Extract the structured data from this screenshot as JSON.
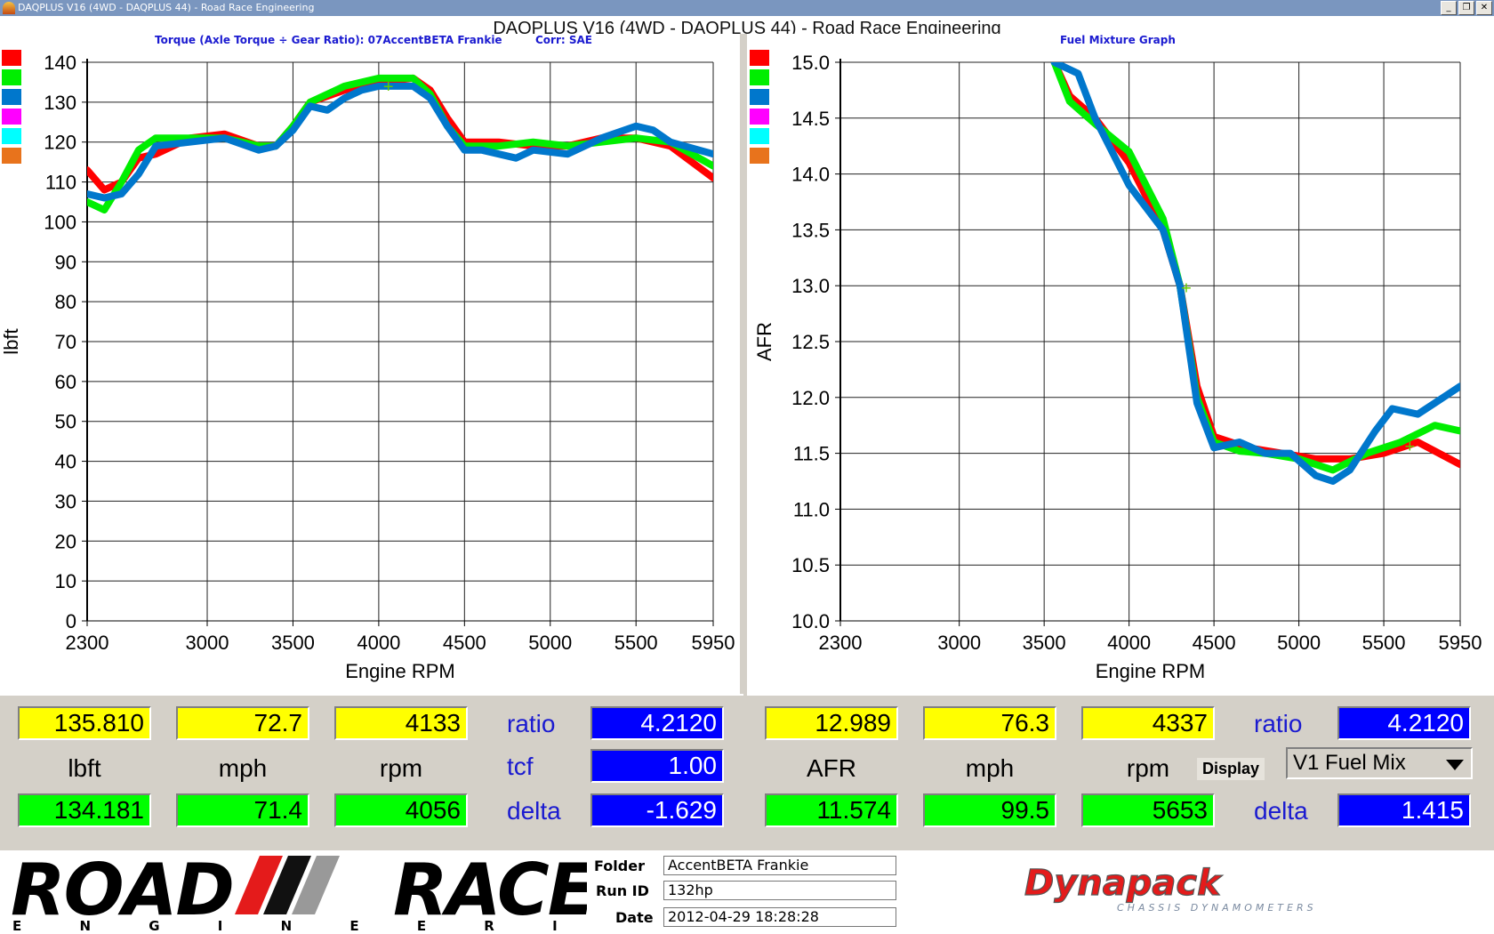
{
  "window": {
    "title": "DAQPLUS V16 (4WD - DAQPLUS 44) - Road Race Engineering",
    "heading": "DAQPLUS V16 (4WD - DAQPLUS 44) - Road Race Engineering",
    "minimize": "_",
    "restore": "❐",
    "close": "✕"
  },
  "colors": {
    "red": "#ff0000",
    "green": "#00ee00",
    "blue": "#0077cc",
    "magenta": "#ff00ff",
    "cyan": "#00ffff",
    "orange": "#e8731c",
    "readout_yellow": "#ffff00",
    "readout_green": "#00ff00",
    "readout_blue": "#0000ff"
  },
  "left_chart": {
    "subtitle": "Torque (Axle Torque ÷ Gear Ratio): 07AccentBETA Frankie",
    "corr": "Corr: SAE",
    "cursor_marker": "+"
  },
  "right_chart": {
    "subtitle": "Fuel Mixture Graph",
    "cursor_marker": "+"
  },
  "chart_data": [
    {
      "type": "line",
      "title": "Torque (Axle Torque ÷ Gear Ratio): 07AccentBETA Frankie",
      "xlabel": "Engine RPM",
      "ylabel": "lbft",
      "xlim": [
        2300,
        5950
      ],
      "ylim": [
        0,
        140
      ],
      "xticks": [
        "2300",
        "3000",
        "3500",
        "4000",
        "4500",
        "5000",
        "5500",
        "5950"
      ],
      "xtick_values": [
        2300,
        3000,
        3500,
        4000,
        4500,
        5000,
        5500,
        5950
      ],
      "yticks": [
        "0",
        "10",
        "20",
        "30",
        "40",
        "50",
        "60",
        "70",
        "80",
        "90",
        "100",
        "110",
        "120",
        "130",
        "140"
      ],
      "ytick_values": [
        0,
        10,
        20,
        30,
        40,
        50,
        60,
        70,
        80,
        90,
        100,
        110,
        120,
        130,
        140
      ],
      "grid": true,
      "series": [
        {
          "color": "#ff0000",
          "x": [
            2300,
            2400,
            2500,
            2600,
            2700,
            2900,
            3100,
            3300,
            3400,
            3500,
            3600,
            3800,
            4000,
            4200,
            4300,
            4400,
            4500,
            4700,
            4900,
            5100,
            5300,
            5500,
            5700,
            5950
          ],
          "y": [
            113,
            108,
            110,
            116,
            117,
            121,
            122,
            119,
            119,
            124,
            130,
            133,
            135,
            136,
            133,
            126,
            120,
            120,
            119,
            119,
            121,
            121,
            119,
            111
          ]
        },
        {
          "color": "#00ee00",
          "x": [
            2300,
            2400,
            2500,
            2600,
            2700,
            2900,
            3100,
            3300,
            3400,
            3500,
            3600,
            3800,
            4000,
            4200,
            4300,
            4400,
            4500,
            4700,
            4900,
            5100,
            5300,
            5500,
            5700,
            5950
          ],
          "y": [
            105,
            103,
            110,
            118,
            121,
            121,
            121,
            119,
            119,
            124,
            130,
            134,
            136,
            136,
            132,
            124,
            119,
            119,
            120,
            119,
            120,
            121,
            120,
            114
          ]
        },
        {
          "color": "#0077cc",
          "x": [
            2300,
            2400,
            2500,
            2600,
            2700,
            2900,
            3100,
            3300,
            3400,
            3500,
            3600,
            3700,
            3800,
            3900,
            4000,
            4200,
            4300,
            4400,
            4500,
            4600,
            4800,
            4900,
            5100,
            5300,
            5500,
            5600,
            5700,
            5950
          ],
          "y": [
            107,
            106,
            107,
            112,
            119,
            120,
            121,
            118,
            119,
            123,
            129,
            128,
            131,
            133,
            134,
            134,
            131,
            124,
            118,
            118,
            116,
            118,
            117,
            121,
            124,
            123,
            120,
            117
          ]
        }
      ]
    },
    {
      "type": "line",
      "title": "Fuel Mixture Graph",
      "xlabel": "Engine RPM",
      "ylabel": "AFR",
      "xlim": [
        2300,
        5950
      ],
      "ylim": [
        10.0,
        15.0
      ],
      "xticks": [
        "2300",
        "3000",
        "3500",
        "4000",
        "4500",
        "5000",
        "5500",
        "5950"
      ],
      "xtick_values": [
        2300,
        3000,
        3500,
        4000,
        4500,
        5000,
        5500,
        5950
      ],
      "yticks": [
        "10.0",
        "10.5",
        "11.0",
        "11.5",
        "12.0",
        "12.5",
        "13.0",
        "13.5",
        "14.0",
        "14.5",
        "15.0"
      ],
      "ytick_values": [
        10.0,
        10.5,
        11.0,
        11.5,
        12.0,
        12.5,
        13.0,
        13.5,
        14.0,
        14.5,
        15.0
      ],
      "grid": true,
      "series": [
        {
          "color": "#ff0000",
          "x": [
            3560,
            3650,
            3800,
            4000,
            4200,
            4300,
            4400,
            4500,
            4700,
            4900,
            5100,
            5300,
            5500,
            5700,
            5950
          ],
          "y": [
            15.0,
            14.7,
            14.5,
            14.1,
            13.5,
            13.0,
            12.1,
            11.65,
            11.55,
            11.5,
            11.45,
            11.45,
            11.5,
            11.6,
            11.4
          ]
        },
        {
          "color": "#00ee00",
          "x": [
            3560,
            3650,
            3800,
            4000,
            4200,
            4300,
            4400,
            4500,
            4650,
            4800,
            5000,
            5200,
            5400,
            5600,
            5800,
            5950
          ],
          "y": [
            15.0,
            14.65,
            14.45,
            14.2,
            13.6,
            13.0,
            12.0,
            11.6,
            11.52,
            11.5,
            11.45,
            11.35,
            11.5,
            11.6,
            11.75,
            11.7
          ]
        },
        {
          "color": "#0077cc",
          "x": [
            3560,
            3700,
            3800,
            3900,
            4000,
            4200,
            4300,
            4400,
            4500,
            4650,
            4800,
            4950,
            5100,
            5200,
            5300,
            5450,
            5550,
            5700,
            5800,
            5950
          ],
          "y": [
            15.0,
            14.9,
            14.5,
            14.2,
            13.9,
            13.5,
            13.0,
            11.95,
            11.55,
            11.6,
            11.5,
            11.5,
            11.3,
            11.25,
            11.35,
            11.7,
            11.9,
            11.85,
            11.95,
            12.1
          ]
        }
      ]
    }
  ],
  "legend_swatches": [
    "#ff0000",
    "#00ee00",
    "#0077cc",
    "#ff00ff",
    "#00ffff",
    "#e8731c"
  ],
  "left_readout": {
    "cursor_values": [
      "135.810",
      "72.7",
      "4133"
    ],
    "units": [
      "lbft",
      "mph",
      "rpm"
    ],
    "compare_values": [
      "134.181",
      "71.4",
      "4056"
    ],
    "ratio_label": "ratio",
    "ratio_value": "4.2120",
    "tcf_label": "tcf",
    "tcf_value": "1.00",
    "delta_label": "delta",
    "delta_value": "-1.629"
  },
  "right_readout": {
    "cursor_values": [
      "12.989",
      "76.3",
      "4337"
    ],
    "units": [
      "AFR",
      "mph",
      "rpm"
    ],
    "compare_values": [
      "11.574",
      "99.5",
      "5653"
    ],
    "ratio_label": "ratio",
    "ratio_value": "4.2120",
    "display_label": "Display",
    "display_select": "V1 Fuel Mix",
    "delta_label": "delta",
    "delta_value": "1.415"
  },
  "footer": {
    "logo_road": "ROAD",
    "logo_race": "RACE",
    "logo_engineering": "E N G I N E E R I N G",
    "folder_label": "Folder",
    "folder_value": "AccentBETA Frankie",
    "runid_label": "Run ID",
    "runid_value": "132hp",
    "date_label": "Date",
    "date_value": "2012-04-29 18:28:28",
    "dynapack": "Dynapack",
    "dynapack_sub": "CHASSIS DYNAMOMETERS"
  }
}
